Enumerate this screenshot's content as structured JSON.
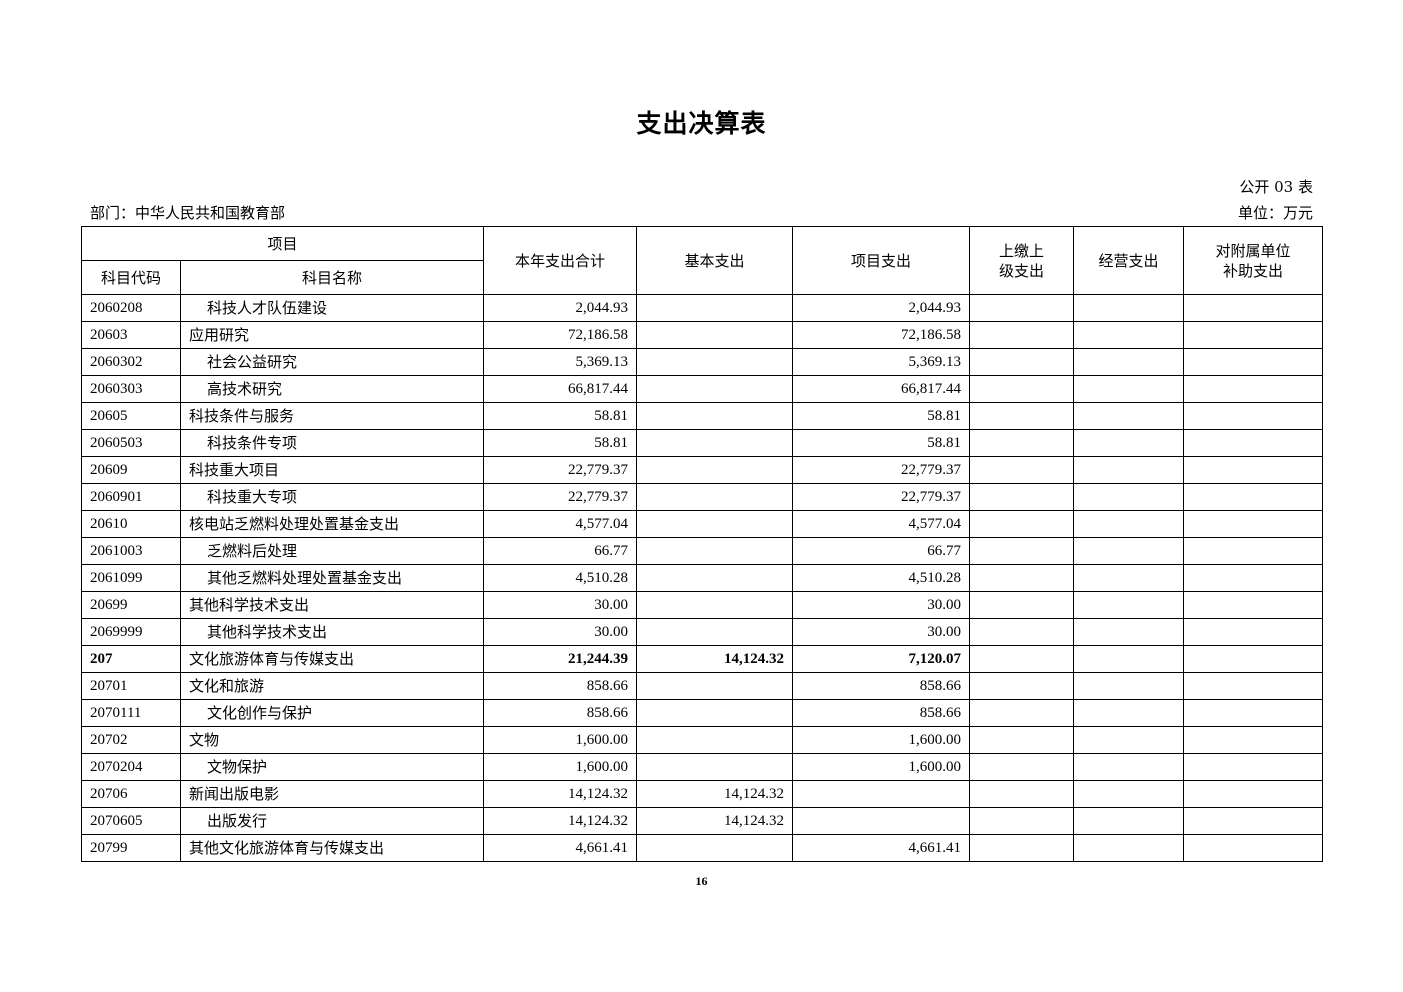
{
  "title": "支出决算表",
  "form_no": "公开 03 表",
  "department": "部门：中华人民共和国教育部",
  "unit": "单位：万元",
  "headers": {
    "item": "项目",
    "code": "科目代码",
    "name": "科目名称",
    "total": "本年支出合计",
    "basic": "基本支出",
    "project": "项目支出",
    "upper_l1": "上缴上",
    "upper_l2": "级支出",
    "business": "经营支出",
    "subsidy_l1": "对附属单位",
    "subsidy_l2": "补助支出"
  },
  "rows": [
    {
      "code": "2060208",
      "name": "科技人才队伍建设",
      "indent": true,
      "total": "2,044.93",
      "basic": "",
      "project": "2,044.93",
      "upper": "",
      "business": "",
      "subsidy": ""
    },
    {
      "code": "20603",
      "name": "应用研究",
      "indent": false,
      "total": "72,186.58",
      "basic": "",
      "project": "72,186.58",
      "upper": "",
      "business": "",
      "subsidy": ""
    },
    {
      "code": "2060302",
      "name": "社会公益研究",
      "indent": true,
      "total": "5,369.13",
      "basic": "",
      "project": "5,369.13",
      "upper": "",
      "business": "",
      "subsidy": ""
    },
    {
      "code": "2060303",
      "name": "高技术研究",
      "indent": true,
      "total": "66,817.44",
      "basic": "",
      "project": "66,817.44",
      "upper": "",
      "business": "",
      "subsidy": ""
    },
    {
      "code": "20605",
      "name": "科技条件与服务",
      "indent": false,
      "total": "58.81",
      "basic": "",
      "project": "58.81",
      "upper": "",
      "business": "",
      "subsidy": ""
    },
    {
      "code": "2060503",
      "name": "科技条件专项",
      "indent": true,
      "total": "58.81",
      "basic": "",
      "project": "58.81",
      "upper": "",
      "business": "",
      "subsidy": ""
    },
    {
      "code": "20609",
      "name": "科技重大项目",
      "indent": false,
      "total": "22,779.37",
      "basic": "",
      "project": "22,779.37",
      "upper": "",
      "business": "",
      "subsidy": ""
    },
    {
      "code": "2060901",
      "name": "科技重大专项",
      "indent": true,
      "total": "22,779.37",
      "basic": "",
      "project": "22,779.37",
      "upper": "",
      "business": "",
      "subsidy": ""
    },
    {
      "code": "20610",
      "name": "核电站乏燃料处理处置基金支出",
      "indent": false,
      "total": "4,577.04",
      "basic": "",
      "project": "4,577.04",
      "upper": "",
      "business": "",
      "subsidy": ""
    },
    {
      "code": "2061003",
      "name": "乏燃料后处理",
      "indent": true,
      "total": "66.77",
      "basic": "",
      "project": "66.77",
      "upper": "",
      "business": "",
      "subsidy": ""
    },
    {
      "code": "2061099",
      "name": "其他乏燃料处理处置基金支出",
      "indent": true,
      "total": "4,510.28",
      "basic": "",
      "project": "4,510.28",
      "upper": "",
      "business": "",
      "subsidy": ""
    },
    {
      "code": "20699",
      "name": "其他科学技术支出",
      "indent": false,
      "total": "30.00",
      "basic": "",
      "project": "30.00",
      "upper": "",
      "business": "",
      "subsidy": ""
    },
    {
      "code": "2069999",
      "name": "其他科学技术支出",
      "indent": true,
      "total": "30.00",
      "basic": "",
      "project": "30.00",
      "upper": "",
      "business": "",
      "subsidy": ""
    },
    {
      "code": "207",
      "name": "文化旅游体育与传媒支出",
      "indent": false,
      "bold": true,
      "total": "21,244.39",
      "basic": "14,124.32",
      "project": "7,120.07",
      "upper": "",
      "business": "",
      "subsidy": ""
    },
    {
      "code": "20701",
      "name": "文化和旅游",
      "indent": false,
      "total": "858.66",
      "basic": "",
      "project": "858.66",
      "upper": "",
      "business": "",
      "subsidy": ""
    },
    {
      "code": "2070111",
      "name": "文化创作与保护",
      "indent": true,
      "total": "858.66",
      "basic": "",
      "project": "858.66",
      "upper": "",
      "business": "",
      "subsidy": ""
    },
    {
      "code": "20702",
      "name": "文物",
      "indent": false,
      "total": "1,600.00",
      "basic": "",
      "project": "1,600.00",
      "upper": "",
      "business": "",
      "subsidy": ""
    },
    {
      "code": "2070204",
      "name": "文物保护",
      "indent": true,
      "total": "1,600.00",
      "basic": "",
      "project": "1,600.00",
      "upper": "",
      "business": "",
      "subsidy": ""
    },
    {
      "code": "20706",
      "name": "新闻出版电影",
      "indent": false,
      "total": "14,124.32",
      "basic": "14,124.32",
      "project": "",
      "upper": "",
      "business": "",
      "subsidy": ""
    },
    {
      "code": "2070605",
      "name": "出版发行",
      "indent": true,
      "total": "14,124.32",
      "basic": "14,124.32",
      "project": "",
      "upper": "",
      "business": "",
      "subsidy": ""
    },
    {
      "code": "20799",
      "name": "其他文化旅游体育与传媒支出",
      "indent": false,
      "total": "4,661.41",
      "basic": "",
      "project": "4,661.41",
      "upper": "",
      "business": "",
      "subsidy": ""
    }
  ],
  "page_number": "16"
}
